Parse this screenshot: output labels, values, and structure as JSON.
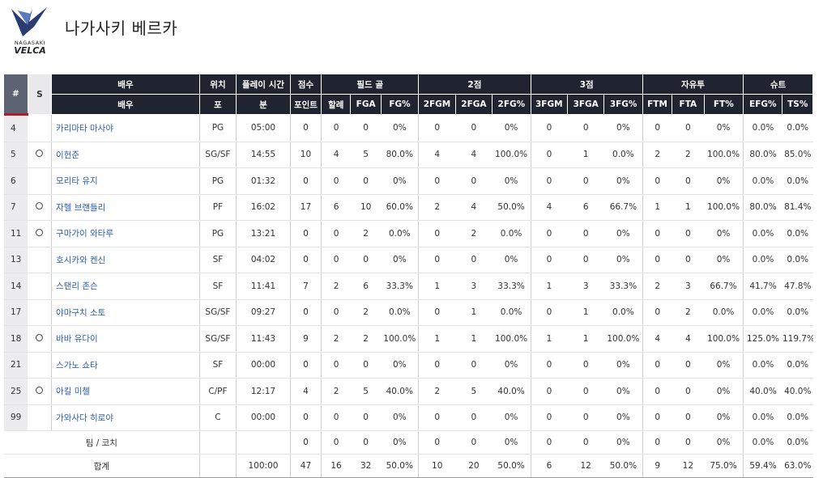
{
  "team": {
    "name": "나가사키 베르카",
    "logo_text_top": "NAGASAKI",
    "logo_text_bottom": "VELCA"
  },
  "header_groups": {
    "num": "#",
    "s": "S",
    "player": "배우",
    "pos": "위치",
    "min": "플레이 시간",
    "pts": "점수",
    "fg": "필드 골",
    "two": "2점",
    "three": "3점",
    "ft": "자유투",
    "shoot": "슈트"
  },
  "header_sub": {
    "player": "배우",
    "pos": "포",
    "min": "분",
    "pts": "포인트",
    "fgm": "할례",
    "fga": "FGA",
    "fgp": "FG%",
    "two_m": "2FGM",
    "two_a": "2FGA",
    "two_p": "2FG%",
    "three_m": "3FGM",
    "three_a": "3FGA",
    "three_p": "3FG%",
    "ftm": "FTM",
    "fta": "FTA",
    "ftp": "FT%",
    "efg": "EFG%",
    "ts": "TS%"
  },
  "starter_mark": "○",
  "players": [
    {
      "num": "4",
      "s": "",
      "name": "카리마타 마사야",
      "pos": "PG",
      "min": "05:00",
      "pts": "0",
      "fgm": "0",
      "fga": "0",
      "fgp": "0%",
      "two_m": "0",
      "two_a": "0",
      "two_p": "0%",
      "three_m": "0",
      "three_a": "0",
      "three_p": "0%",
      "ftm": "0",
      "fta": "0",
      "ftp": "0%",
      "efg": "0.0%",
      "ts": "0.0%"
    },
    {
      "num": "5",
      "s": "○",
      "name": "이헌준",
      "pos": "SG/SF",
      "min": "14:55",
      "pts": "10",
      "fgm": "4",
      "fga": "5",
      "fgp": "80.0%",
      "two_m": "4",
      "two_a": "4",
      "two_p": "100.0%",
      "three_m": "0",
      "three_a": "1",
      "three_p": "0.0%",
      "ftm": "2",
      "fta": "2",
      "ftp": "100.0%",
      "efg": "80.0%",
      "ts": "85.0%"
    },
    {
      "num": "6",
      "s": "",
      "name": "모리타 유지",
      "pos": "PG",
      "min": "01:32",
      "pts": "0",
      "fgm": "0",
      "fga": "0",
      "fgp": "0%",
      "two_m": "0",
      "two_a": "0",
      "two_p": "0%",
      "three_m": "0",
      "three_a": "0",
      "three_p": "0%",
      "ftm": "0",
      "fta": "0",
      "ftp": "0%",
      "efg": "0.0%",
      "ts": "0.0%"
    },
    {
      "num": "7",
      "s": "○",
      "name": "자헬 브랜들리",
      "pos": "PF",
      "min": "16:02",
      "pts": "17",
      "fgm": "6",
      "fga": "10",
      "fgp": "60.0%",
      "two_m": "2",
      "two_a": "4",
      "two_p": "50.0%",
      "three_m": "4",
      "three_a": "6",
      "three_p": "66.7%",
      "ftm": "1",
      "fta": "1",
      "ftp": "100.0%",
      "efg": "80.0%",
      "ts": "81.4%"
    },
    {
      "num": "11",
      "s": "○",
      "name": "구마가이 와타루",
      "pos": "PG",
      "min": "13:21",
      "pts": "0",
      "fgm": "0",
      "fga": "2",
      "fgp": "0.0%",
      "two_m": "0",
      "two_a": "2",
      "two_p": "0.0%",
      "three_m": "0",
      "three_a": "0",
      "three_p": "0%",
      "ftm": "0",
      "fta": "0",
      "ftp": "0%",
      "efg": "0.0%",
      "ts": "0.0%"
    },
    {
      "num": "13",
      "s": "",
      "name": "호시카와 켄신",
      "pos": "SF",
      "min": "04:02",
      "pts": "0",
      "fgm": "0",
      "fga": "0",
      "fgp": "0%",
      "two_m": "0",
      "two_a": "0",
      "two_p": "0%",
      "three_m": "0",
      "three_a": "0",
      "three_p": "0%",
      "ftm": "0",
      "fta": "0",
      "ftp": "0%",
      "efg": "0.0%",
      "ts": "0.0%"
    },
    {
      "num": "14",
      "s": "",
      "name": "스탠리 존슨",
      "pos": "SF",
      "min": "11:41",
      "pts": "7",
      "fgm": "2",
      "fga": "6",
      "fgp": "33.3%",
      "two_m": "1",
      "two_a": "3",
      "two_p": "33.3%",
      "three_m": "1",
      "three_a": "3",
      "three_p": "33.3%",
      "ftm": "2",
      "fta": "3",
      "ftp": "66.7%",
      "efg": "41.7%",
      "ts": "47.8%"
    },
    {
      "num": "17",
      "s": "",
      "name": "야마구치 소토",
      "pos": "SG/SF",
      "min": "09:27",
      "pts": "0",
      "fgm": "0",
      "fga": "2",
      "fgp": "0.0%",
      "two_m": "0",
      "two_a": "1",
      "two_p": "0.0%",
      "three_m": "0",
      "three_a": "1",
      "three_p": "0.0%",
      "ftm": "0",
      "fta": "2",
      "ftp": "0.0%",
      "efg": "0.0%",
      "ts": "0.0%"
    },
    {
      "num": "18",
      "s": "○",
      "name": "바바 유다이",
      "pos": "SG/SF",
      "min": "11:43",
      "pts": "9",
      "fgm": "2",
      "fga": "2",
      "fgp": "100.0%",
      "two_m": "1",
      "two_a": "1",
      "two_p": "100.0%",
      "three_m": "1",
      "three_a": "1",
      "three_p": "100.0%",
      "ftm": "4",
      "fta": "4",
      "ftp": "100.0%",
      "efg": "125.0%",
      "ts": "119.7%"
    },
    {
      "num": "21",
      "s": "",
      "name": "스가노 쇼타",
      "pos": "SF",
      "min": "00:00",
      "pts": "0",
      "fgm": "0",
      "fga": "0",
      "fgp": "0%",
      "two_m": "0",
      "two_a": "0",
      "two_p": "0%",
      "three_m": "0",
      "three_a": "0",
      "three_p": "0%",
      "ftm": "0",
      "fta": "0",
      "ftp": "0%",
      "efg": "0.0%",
      "ts": "0.0%"
    },
    {
      "num": "25",
      "s": "○",
      "name": "아킬 미첼",
      "pos": "C/PF",
      "min": "12:17",
      "pts": "4",
      "fgm": "2",
      "fga": "5",
      "fgp": "40.0%",
      "two_m": "2",
      "two_a": "5",
      "two_p": "40.0%",
      "three_m": "0",
      "three_a": "0",
      "three_p": "0%",
      "ftm": "0",
      "fta": "0",
      "ftp": "0%",
      "efg": "40.0%",
      "ts": "40.0%"
    },
    {
      "num": "99",
      "s": "",
      "name": "가와사다 히로야",
      "pos": "C",
      "min": "00:00",
      "pts": "0",
      "fgm": "0",
      "fga": "0",
      "fgp": "0%",
      "two_m": "0",
      "two_a": "0",
      "two_p": "0%",
      "three_m": "0",
      "three_a": "0",
      "three_p": "0%",
      "ftm": "0",
      "fta": "0",
      "ftp": "0%",
      "efg": "0.0%",
      "ts": "0.0%"
    }
  ],
  "team_row": {
    "label": "팀 / 코치",
    "pos": "",
    "min": "",
    "pts": "0",
    "fgm": "0",
    "fga": "0",
    "fgp": "0%",
    "two_m": "0",
    "two_a": "0",
    "two_p": "0%",
    "three_m": "0",
    "three_a": "0",
    "three_p": "0%",
    "ftm": "0",
    "fta": "0",
    "ftp": "0%",
    "efg": "0.0%",
    "ts": "0.0%"
  },
  "total_row": {
    "label": "합계",
    "pos": "",
    "min": "100:00",
    "pts": "47",
    "fgm": "16",
    "fga": "32",
    "fgp": "50.0%",
    "two_m": "10",
    "two_a": "20",
    "two_p": "50.0%",
    "three_m": "6",
    "three_a": "12",
    "three_p": "50.0%",
    "ftm": "9",
    "fta": "12",
    "ftp": "75.0%",
    "efg": "59.4%",
    "ts": "63.0%"
  },
  "colors": {
    "header_dark": "#1f2430",
    "header_num": "#5d6372",
    "accent_red": "#b01c2e",
    "link_blue": "#2b5db2"
  }
}
